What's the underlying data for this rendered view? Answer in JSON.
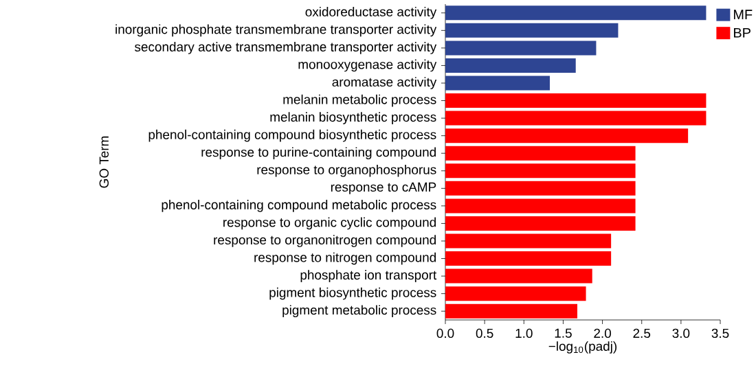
{
  "chart_data": {
    "type": "bar",
    "orientation": "horizontal",
    "xlabel": "−log$_{10}$(padj)",
    "ylabel": "GO Term",
    "categories": [
      "oxidoreductase activity",
      "inorganic phosphate transmembrane transporter activity",
      "secondary active transmembrane transporter activity",
      "monooxygenase activity",
      "aromatase activity",
      "melanin metabolic process",
      "melanin biosynthetic process",
      "phenol-containing compound biosynthetic process",
      "response to purine-containing compound",
      "response to organophosphorus",
      "response to cAMP",
      "phenol-containing compound metabolic process",
      "response to organic cyclic compound",
      "response to organonitrogen compound",
      "response to nitrogen compound",
      "phosphate ion transport",
      "pigment biosynthetic process",
      "pigment metabolic process"
    ],
    "series": [
      {
        "name": "MF",
        "color": "#2e4593",
        "values": [
          3.32,
          2.2,
          1.92,
          1.66,
          1.33,
          null,
          null,
          null,
          null,
          null,
          null,
          null,
          null,
          null,
          null,
          null,
          null,
          null
        ]
      },
      {
        "name": "BP",
        "color": "#ff0000",
        "values": [
          null,
          null,
          null,
          null,
          null,
          3.32,
          3.32,
          3.09,
          2.42,
          2.42,
          2.42,
          2.42,
          2.42,
          2.11,
          2.11,
          1.87,
          1.79,
          1.68
        ]
      }
    ],
    "xlim": [
      0,
      3.5
    ],
    "xticks": [
      {
        "value": 0,
        "label": "0.0"
      },
      {
        "value": 0.5,
        "label": "0.5"
      },
      {
        "value": 1,
        "label": "1.0"
      },
      {
        "value": 1.5,
        "label": "1.5"
      },
      {
        "value": 2,
        "label": "2.0"
      },
      {
        "value": 2.5,
        "label": "2.5"
      },
      {
        "value": 3,
        "label": "3.0"
      },
      {
        "value": 3.5,
        "label": "3.5"
      }
    ],
    "legend": "top right"
  }
}
